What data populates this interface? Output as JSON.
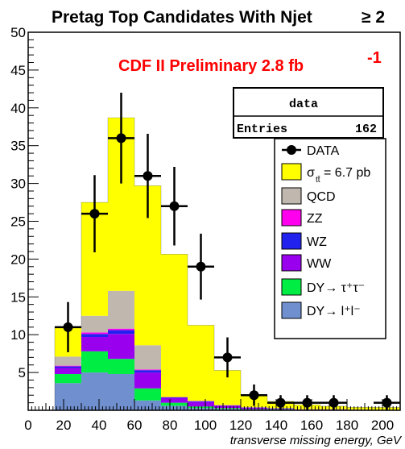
{
  "chart_data": {
    "type": "bar",
    "title": "Pretag Top Candidates With Njet",
    "title_suffix": "≥ 2",
    "annotation": "CDF II Preliminary 2.8 fb",
    "annotation_sup": "-1",
    "xlabel": "transverse missing energy, GeV",
    "ylabel": "",
    "xlim": [
      0,
      210
    ],
    "ylim": [
      0,
      50
    ],
    "x_ticks": [
      0,
      20,
      40,
      60,
      80,
      100,
      120,
      140,
      160,
      180,
      200
    ],
    "y_ticks": [
      5,
      10,
      15,
      20,
      25,
      30,
      35,
      40,
      45,
      50
    ],
    "bin_edges": [
      15,
      30,
      45,
      60,
      75,
      90,
      105,
      120,
      135,
      150,
      165,
      180,
      195,
      210
    ],
    "stack_series": [
      {
        "name": "DY→ l+l-",
        "color": "#6f8fcf",
        "values": [
          3.6,
          5.0,
          4.8,
          1.3,
          0.6,
          0.3,
          0.2,
          0.1,
          0.1,
          0.05,
          0.05,
          0.03,
          0.03
        ]
      },
      {
        "name": "DY→ τ+τ-",
        "color": "#00ee44",
        "values": [
          1.2,
          2.8,
          2.0,
          1.6,
          0.4,
          0.2,
          0.1,
          0.05,
          0.05,
          0.02,
          0.02,
          0.01,
          0.01
        ]
      },
      {
        "name": "WW",
        "color": "#9900ee",
        "values": [
          0.8,
          1.9,
          3.3,
          2.1,
          0.6,
          0.6,
          0.3,
          0.2,
          0.1,
          0.05,
          0.05,
          0.03,
          0.02
        ]
      },
      {
        "name": "WZ",
        "color": "#2222ee",
        "values": [
          0.2,
          0.4,
          0.5,
          0.3,
          0.1,
          0.1,
          0.05,
          0.03,
          0.02,
          0.01,
          0.01,
          0.01,
          0.01
        ]
      },
      {
        "name": "ZZ",
        "color": "#ff00ee",
        "values": [
          0.1,
          0.2,
          0.2,
          0.1,
          0.05,
          0.05,
          0.03,
          0.02,
          0.01,
          0.01,
          0.01,
          0.01,
          0.01
        ]
      },
      {
        "name": "QCD",
        "color": "#c0b8ae",
        "values": [
          1.2,
          2.2,
          5.0,
          3.2,
          0.0,
          0.0,
          0.0,
          0.0,
          0.0,
          0.0,
          0.0,
          0.0,
          0.0
        ]
      },
      {
        "name": "σ_tt̄ = 6.7 pb",
        "color": "#ffff00",
        "values": [
          3.9,
          15.0,
          22.9,
          21.1,
          18.9,
          10.0,
          4.6,
          1.6,
          0.9,
          0.6,
          0.4,
          0.3,
          0.3
        ]
      }
    ],
    "data_points": {
      "name": "DATA",
      "x": [
        22.5,
        37.5,
        52.5,
        67.5,
        82.5,
        97.5,
        112.5,
        127.5,
        142.5,
        157.5,
        172.5,
        202.5
      ],
      "y": [
        11,
        26,
        36,
        31,
        27,
        19,
        7,
        2,
        1,
        1,
        1,
        1
      ]
    },
    "stats_box": {
      "title": "data",
      "label": "Entries",
      "value": "162"
    },
    "legend": [
      {
        "label": "DATA",
        "kind": "marker"
      },
      {
        "label": "σ",
        "sub": "tt̄",
        "rest": " = 6.7 pb",
        "color": "#ffff00"
      },
      {
        "label": "QCD",
        "color": "#c0b8ae"
      },
      {
        "label": "ZZ",
        "color": "#ff00ee"
      },
      {
        "label": "WZ",
        "color": "#2222ee"
      },
      {
        "label": "WW",
        "color": "#9900ee"
      },
      {
        "label": "DY→ τ⁺τ⁻",
        "color": "#00ee44"
      },
      {
        "label": "DY→ l⁺l⁻",
        "color": "#6f8fcf"
      }
    ]
  }
}
